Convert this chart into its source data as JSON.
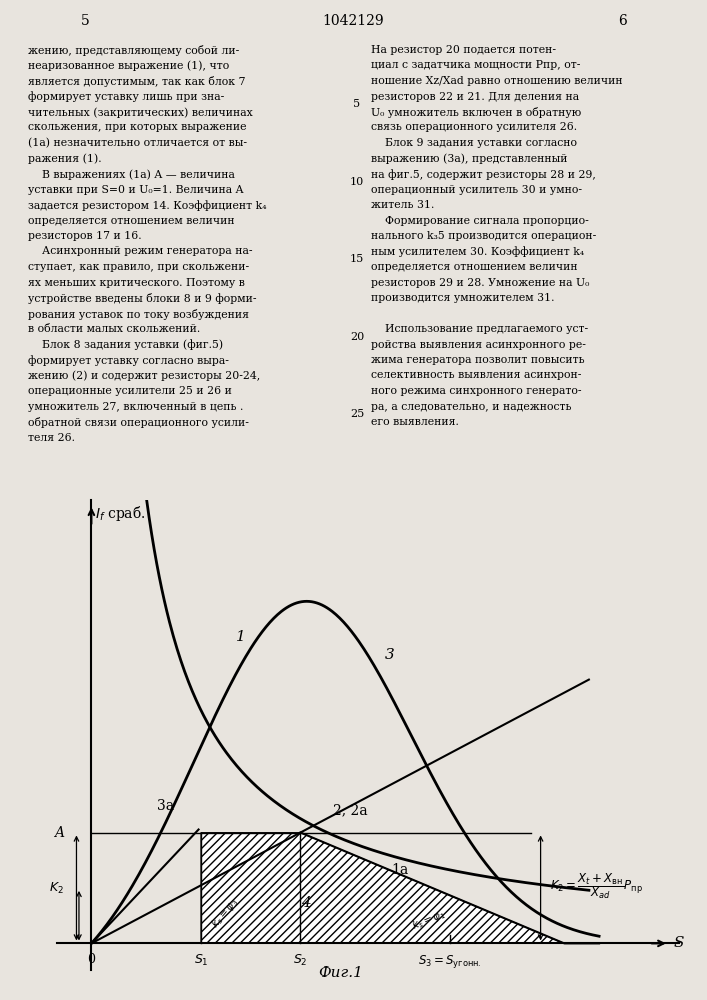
{
  "figsize": [
    7.07,
    10.0
  ],
  "dpi": 100,
  "bg_color": "#e8e4de",
  "S1": 0.22,
  "S2": 0.42,
  "S3": 0.72,
  "S_max": 1.0,
  "A_level": 0.5,
  "K2_level": 0.25,
  "title": "Фиг.1",
  "ylabel": "$I_f$ сраб.",
  "xlabel": "S",
  "label_1": "1",
  "label_2": "2, 2а",
  "label_3": "3",
  "label_3a": "3а",
  "label_1a": "1а",
  "label_4": "4",
  "k2_formula": "$K_2=\\dfrac{X_t+X_{\\text{вн}}}{X_{ad}}P_{пр}$",
  "left_text_col1": [
    "жению, представляющему собой ли-",
    "неаризованное выражение (1), что",
    "является допустимым, так как блок 7",
    "формирует уставку лишь при зна-",
    "чительных (закритических) величинах",
    "скольжения, при которых выражение",
    "(а) незначительно отличается от вы-",
    "ражения (1).",
    "    В выражениях (1а) A — величина",
    "уставки при S=0 и U₀=1. Величина A",
    "задается резистором 14. Коэффициент k₄",
    "определяется отношением величин",
    "резисторов 17 и 16.",
    "    Асинхронный режим генератора на-",
    "ступает, как правило, при скольжени-",
    "ях меньших критического. Поэтому в",
    "устройстве введены блоки 8 и 9 форми-",
    "рования уставок по току возбуждения",
    "в области малых скольжений.",
    "    Блок 8 задания уставки (фиг.5)",
    "формирует уставку согласно выра-",
    "жению (2) и содержит резисторы 20-24,",
    "операционные усилители 25 и 26 и",
    "умножитель 27, включенный в цепь .",
    "обратной связи операционного усили-",
    "теля 26."
  ],
  "page_num_left": "5",
  "page_num_center": "1042129",
  "page_num_right": "6"
}
